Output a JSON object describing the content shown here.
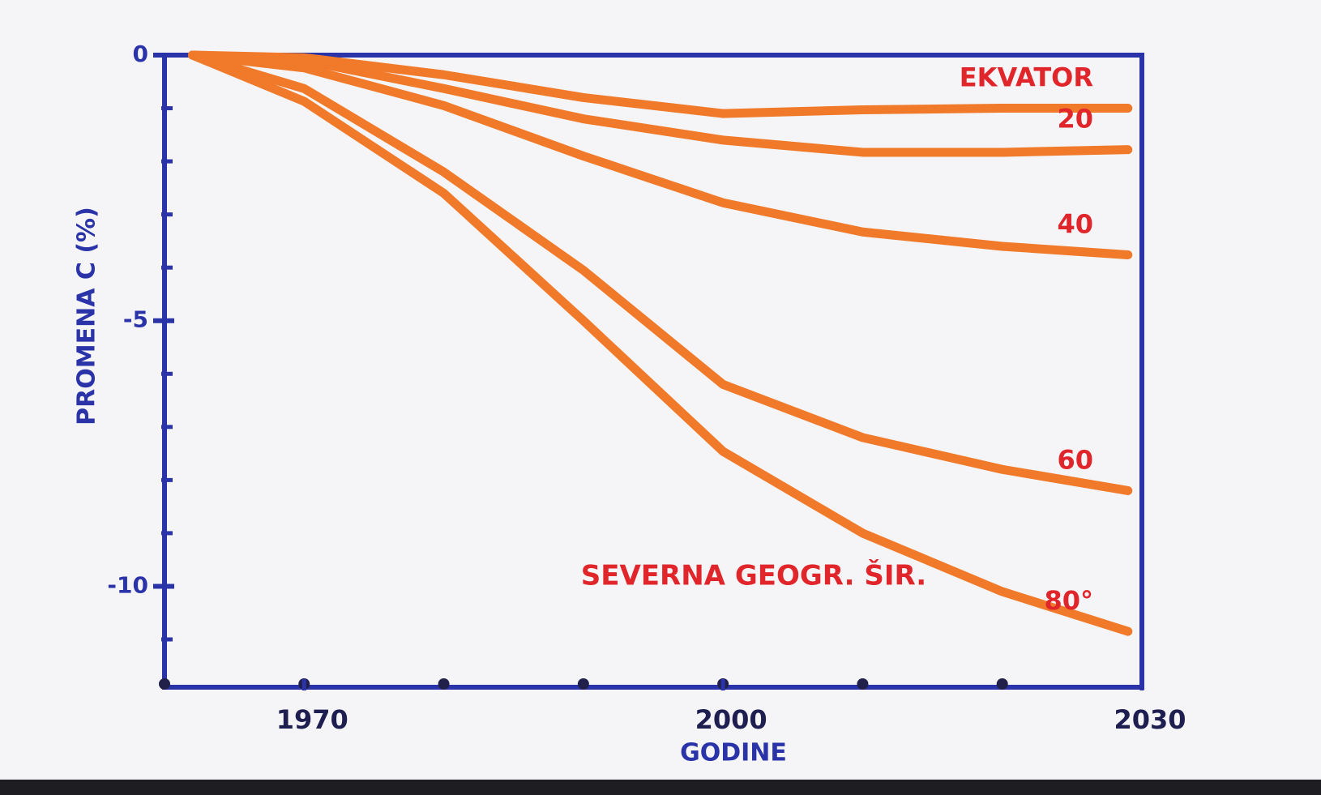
{
  "chart_data": {
    "type": "line",
    "x": [
      1962,
      1970,
      1980,
      1990,
      2000,
      2010,
      2020,
      2029
    ],
    "series": [
      {
        "name": "EKVATOR",
        "color": "#f07a2a",
        "values": [
          0,
          -0.05,
          -0.37,
          -0.8,
          -1.1,
          -1.03,
          -1.0,
          -1.0
        ]
      },
      {
        "name": "20",
        "color": "#f07a2a",
        "values": [
          0,
          -0.1,
          -0.63,
          -1.2,
          -1.6,
          -1.83,
          -1.83,
          -1.78
        ]
      },
      {
        "name": "40",
        "color": "#f07a2a",
        "values": [
          0,
          -0.24,
          -0.95,
          -1.9,
          -2.78,
          -3.33,
          -3.6,
          -3.76
        ]
      },
      {
        "name": "60",
        "color": "#f07a2a",
        "values": [
          0,
          -0.63,
          -2.2,
          -4.05,
          -6.2,
          -7.2,
          -7.8,
          -8.2
        ]
      },
      {
        "name": "80°",
        "color": "#f07a2a",
        "values": [
          0,
          -0.87,
          -2.6,
          -5.0,
          -7.46,
          -9.0,
          -10.1,
          -10.85
        ]
      }
    ],
    "annotation": "SEVERNA GEOGR. ŠIR.",
    "xlabel": "GODINE",
    "ylabel": "PROMENA C (%)",
    "xlim": [
      1960,
      2030
    ],
    "xticks": [
      1970,
      2000,
      2030
    ],
    "xminorticks": [
      1960,
      1970,
      1980,
      1990,
      2000,
      2010,
      2020
    ],
    "ylim": [
      -11.9,
      0
    ],
    "yticks": [
      0,
      -5,
      -10
    ],
    "yminorticks": [
      -1,
      -2,
      -3,
      -4,
      -6,
      -7,
      -8,
      -9,
      -11
    ]
  }
}
